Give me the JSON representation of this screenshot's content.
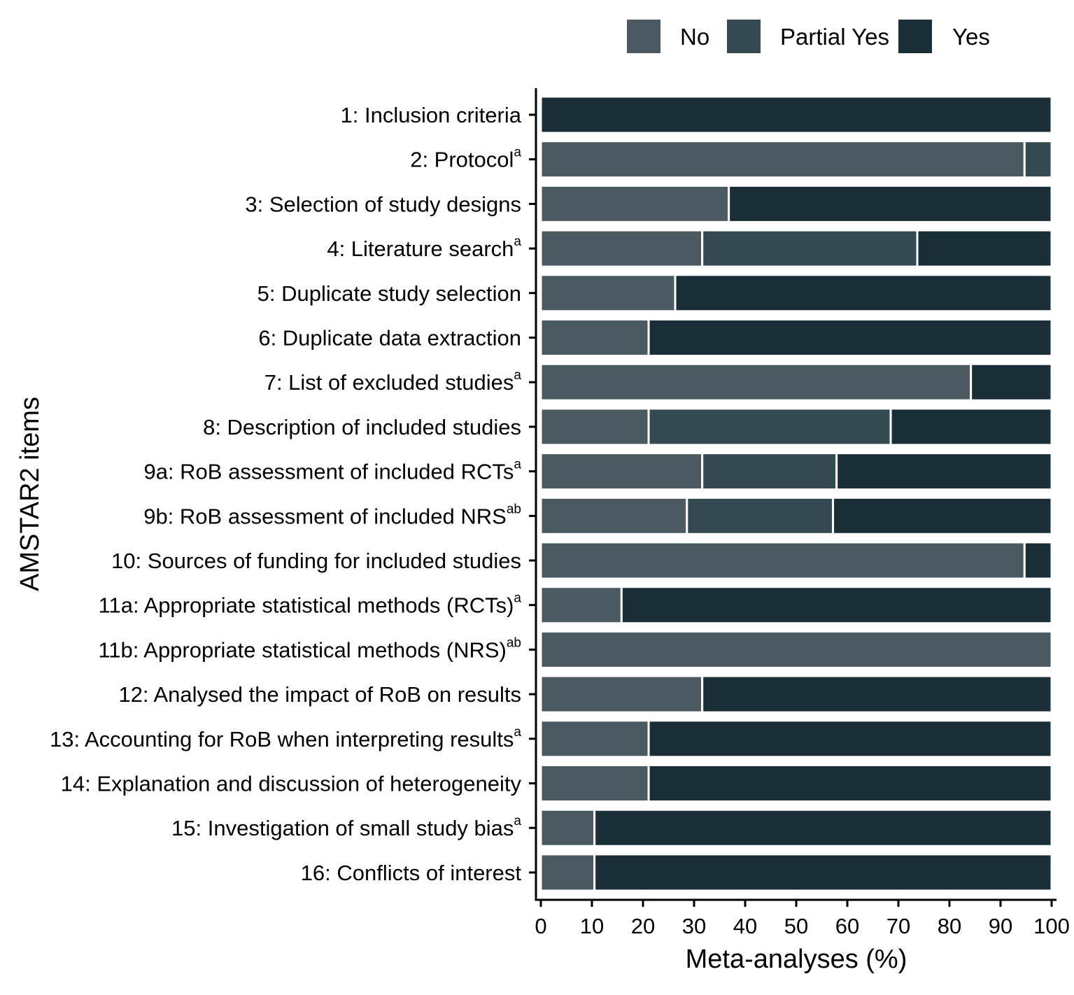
{
  "chart_data": {
    "type": "bar",
    "orientation": "horizontal",
    "stacked": true,
    "xlabel": "Meta-analyses (%)",
    "ylabel": "AMSTAR2 items",
    "xlim": [
      0,
      100
    ],
    "xticks": [
      0,
      10,
      20,
      30,
      40,
      50,
      60,
      70,
      80,
      90,
      100
    ],
    "grid": false,
    "legend_position": "top",
    "categories": [
      {
        "label": "1: Inclusion criteria",
        "sup": ""
      },
      {
        "label": "2: Protocol",
        "sup": "a"
      },
      {
        "label": "3: Selection of study designs",
        "sup": ""
      },
      {
        "label": "4: Literature search",
        "sup": "a"
      },
      {
        "label": "5: Duplicate study selection",
        "sup": ""
      },
      {
        "label": "6: Duplicate data extraction",
        "sup": ""
      },
      {
        "label": "7: List of excluded studies",
        "sup": "a"
      },
      {
        "label": "8: Description of included studies",
        "sup": ""
      },
      {
        "label": "9a: RoB assessment of included RCTs",
        "sup": "a"
      },
      {
        "label": "9b: RoB assessment of included NRS",
        "sup": "ab"
      },
      {
        "label": "10: Sources of funding for included studies",
        "sup": ""
      },
      {
        "label": "11a: Appropriate statistical methods (RCTs)",
        "sup": "a"
      },
      {
        "label": "11b: Appropriate statistical methods (NRS)",
        "sup": "ab"
      },
      {
        "label": "12: Analysed the impact of RoB on results",
        "sup": ""
      },
      {
        "label": "13: Accounting for RoB when interpreting results",
        "sup": "a"
      },
      {
        "label": "14: Explanation and discussion of heterogeneity",
        "sup": ""
      },
      {
        "label": "15: Investigation of small study bias",
        "sup": "a"
      },
      {
        "label": "16: Conflicts of interest",
        "sup": ""
      }
    ],
    "series": [
      {
        "name": "No",
        "color": "#4b5a60",
        "values": [
          0,
          94.7,
          36.8,
          31.6,
          26.3,
          21.1,
          84.2,
          21.1,
          31.6,
          28.6,
          94.7,
          15.8,
          100,
          31.6,
          21.1,
          21.1,
          10.5,
          10.5
        ]
      },
      {
        "name": "Partial Yes",
        "color": "#344a52",
        "values": [
          0,
          5.3,
          0,
          42.1,
          0,
          0,
          0,
          47.4,
          26.3,
          28.6,
          0,
          0,
          0,
          0,
          0,
          0,
          0,
          0
        ]
      },
      {
        "name": "Yes",
        "color": "#1a2e38",
        "values": [
          100,
          0,
          63.2,
          26.3,
          73.7,
          78.9,
          15.8,
          31.5,
          42.1,
          42.8,
          5.3,
          84.2,
          0,
          68.4,
          78.9,
          78.9,
          89.5,
          89.5
        ]
      }
    ]
  }
}
